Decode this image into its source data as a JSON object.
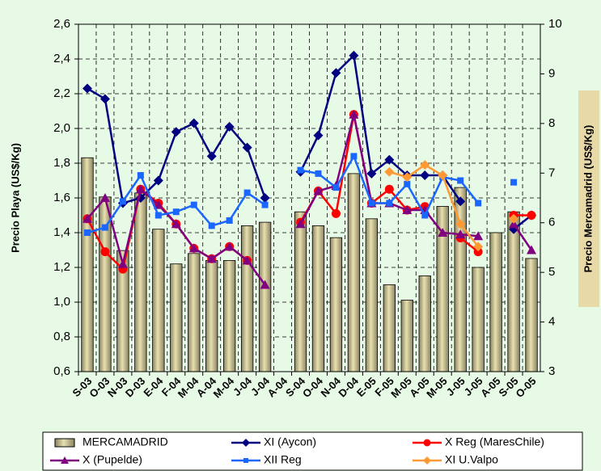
{
  "chart_data": {
    "type": "combo",
    "categories": [
      "S-03",
      "O-03",
      "N-03",
      "D-03",
      "E-04",
      "F-04",
      "M-04",
      "A-04",
      "M-04",
      "J-04",
      "J-04",
      "A-04",
      "S-04",
      "O-04",
      "N-04",
      "D-04",
      "E-05",
      "F-05",
      "M-05",
      "A-05",
      "M-05",
      "J-05",
      "J-05",
      "A-05",
      "S-05",
      "O-05"
    ],
    "y_label": "Precio Playa (US$/Kg)",
    "y2_label": "Precio Mercamadrid (US$/Kg)",
    "ylim": [
      0.6,
      2.6
    ],
    "yticks": [
      {
        "value": 0.6,
        "label": "0,6"
      },
      {
        "value": 0.8,
        "label": "0,8"
      },
      {
        "value": 1.0,
        "label": "1,0"
      },
      {
        "value": 1.2,
        "label": "1,2"
      },
      {
        "value": 1.4,
        "label": "1,4"
      },
      {
        "value": 1.6,
        "label": "1,6"
      },
      {
        "value": 1.8,
        "label": "1,8"
      },
      {
        "value": 2.0,
        "label": "2,0"
      },
      {
        "value": 2.2,
        "label": "2,2"
      },
      {
        "value": 2.4,
        "label": "2,4"
      },
      {
        "value": 2.6,
        "label": "2,6"
      }
    ],
    "y2lim": [
      3,
      10
    ],
    "y2ticks": [
      3,
      4,
      5,
      6,
      7,
      8,
      9,
      10
    ],
    "grid": true,
    "series": [
      {
        "name": "MERCAMADRID",
        "type": "bar",
        "axis": "y2",
        "color": "#e8e0b0",
        "values": [
          7.31,
          6.52,
          5.44,
          6.6,
          5.87,
          5.17,
          5.38,
          5.24,
          5.24,
          5.94,
          6.01,
          null,
          6.22,
          5.94,
          5.7,
          6.99,
          6.08,
          4.75,
          4.44,
          4.93,
          6.33,
          6.71,
          5.1,
          5.8,
          6.22,
          5.28
        ]
      },
      {
        "name": "XI (Aycon)",
        "type": "line",
        "marker": "diamond",
        "color": "#000080",
        "values": [
          2.23,
          2.17,
          1.57,
          1.6,
          1.7,
          1.98,
          2.03,
          1.84,
          2.01,
          1.89,
          1.6,
          null,
          1.75,
          1.96,
          2.32,
          2.42,
          1.74,
          1.82,
          1.73,
          1.73,
          1.73,
          1.58,
          null,
          null,
          1.42,
          1.5
        ]
      },
      {
        "name": "X Reg (MaresChile)",
        "type": "line",
        "marker": "circle",
        "color": "#ff0000",
        "values": [
          1.48,
          1.29,
          1.19,
          1.65,
          1.57,
          1.45,
          1.31,
          1.25,
          1.32,
          1.24,
          null,
          null,
          1.46,
          1.64,
          1.51,
          2.08,
          1.57,
          1.65,
          1.53,
          1.55,
          null,
          1.37,
          1.29,
          null,
          1.5,
          1.5
        ]
      },
      {
        "name": "X  (Pupelde)",
        "type": "line",
        "marker": "triangle",
        "color": "#800080",
        "values": [
          1.48,
          1.6,
          1.22,
          1.65,
          1.56,
          1.45,
          1.31,
          1.25,
          1.32,
          1.24,
          1.1,
          null,
          1.45,
          1.64,
          1.67,
          2.08,
          1.57,
          1.57,
          1.53,
          1.53,
          1.4,
          1.39,
          1.38,
          null,
          1.45,
          1.3
        ]
      },
      {
        "name": "XII Reg",
        "type": "line",
        "marker": "square",
        "color": "#1a66ff",
        "values": [
          1.4,
          1.43,
          1.58,
          1.73,
          1.5,
          1.52,
          1.56,
          1.44,
          1.47,
          1.63,
          1.56,
          null,
          1.76,
          1.74,
          1.66,
          1.84,
          1.57,
          1.57,
          1.68,
          1.5,
          1.72,
          1.7,
          1.57,
          null,
          1.69,
          null
        ]
      },
      {
        "name": "XI U.Valpo",
        "type": "line",
        "marker": "diamond",
        "color": "#ff9933",
        "values": [
          null,
          null,
          null,
          null,
          null,
          null,
          null,
          null,
          null,
          null,
          null,
          null,
          null,
          null,
          null,
          null,
          null,
          1.75,
          1.72,
          1.79,
          1.73,
          1.45,
          1.32,
          null,
          1.48,
          null
        ]
      }
    ]
  }
}
